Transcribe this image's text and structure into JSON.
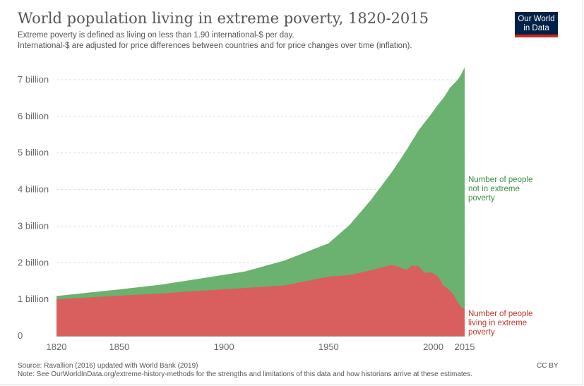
{
  "header": {
    "title": "World population living in extreme poverty, 1820-2015",
    "subtitle_line1": "Extreme poverty is defined as living on less than 1.90 international-$ per day.",
    "subtitle_line2": "International-$ are adjusted for price differences between countries and for price changes over time (inflation)."
  },
  "logo": {
    "line1": "Our World",
    "line2": "in Data"
  },
  "footer": {
    "source": "Source: Ravallion (2016) updated with World Bank (2019)",
    "note": "Note: See OurWorldInData.org/extreme-history-methods for the strengths and limitations of this data and how historians arrive at these estimates.",
    "license": "CC BY"
  },
  "colors": {
    "not_poor": "#6bb16f",
    "poor": "#d95f5e",
    "not_poor_label": "#3f8f46",
    "poor_label": "#c0392b"
  },
  "chart_data": {
    "type": "area",
    "stacked": true,
    "x": [
      1820,
      1850,
      1870,
      1890,
      1910,
      1929,
      1950,
      1960,
      1970,
      1980,
      1984,
      1987,
      1990,
      1993,
      1996,
      1999,
      2002,
      2005,
      2008,
      2010,
      2011,
      2012,
      2013,
      2015
    ],
    "series": [
      {
        "name": "Number of people living in extreme poverty",
        "values": [
          1.0,
          1.1,
          1.16,
          1.24,
          1.31,
          1.38,
          1.62,
          1.66,
          1.79,
          1.94,
          1.88,
          1.8,
          1.92,
          1.9,
          1.72,
          1.74,
          1.64,
          1.37,
          1.24,
          1.1,
          0.98,
          0.9,
          0.8,
          0.73
        ]
      },
      {
        "name": "Number of people not in extreme poverty",
        "values": [
          0.09,
          0.17,
          0.24,
          0.34,
          0.45,
          0.68,
          0.91,
          1.37,
          1.91,
          2.52,
          2.92,
          3.26,
          3.42,
          3.72,
          4.12,
          4.32,
          4.66,
          5.14,
          5.54,
          5.8,
          5.98,
          6.13,
          6.31,
          6.61
        ]
      }
    ],
    "ylim": [
      0,
      7
    ],
    "yticks": [
      0,
      1,
      2,
      3,
      4,
      5,
      6,
      7
    ],
    "ytick_labels": [
      "0",
      "1 billion",
      "2 billion",
      "3 billion",
      "4 billion",
      "5 billion",
      "6 billion",
      "7 billion"
    ],
    "xticks": [
      1820,
      1850,
      1900,
      1950,
      2000,
      2015
    ],
    "xtick_labels": [
      "1820",
      "1850",
      "1900",
      "1950",
      "2000",
      "2015"
    ],
    "xlabel": "",
    "ylabel": "",
    "grid": "horizontal dashed",
    "labels": {
      "not_poor": [
        "Number of people",
        "not in extreme",
        "poverty"
      ],
      "poor": [
        "Number of people",
        "living in extreme",
        "poverty"
      ]
    }
  }
}
